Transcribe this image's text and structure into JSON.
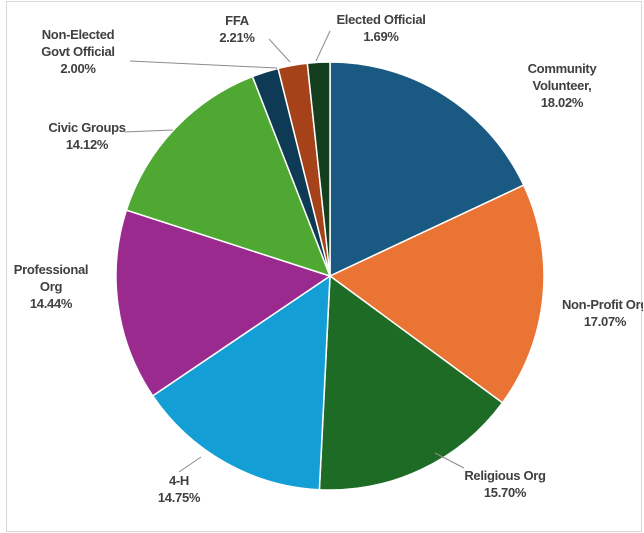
{
  "chart_data": {
    "type": "pie",
    "slices": [
      {
        "label_lines": [
          "Community",
          "Volunteer,"
        ],
        "value": 18.02,
        "value_text": "18.02%",
        "color": "#1a5a82"
      },
      {
        "label_lines": [
          "Non-Profit Org"
        ],
        "value": 17.07,
        "value_text": "17.07%",
        "color": "#ea7433"
      },
      {
        "label_lines": [
          "Religious Org"
        ],
        "value": 15.7,
        "value_text": "15.70%",
        "color": "#1e6b26"
      },
      {
        "label_lines": [
          "4-H"
        ],
        "value": 14.75,
        "value_text": "14.75%",
        "color": "#149ed6"
      },
      {
        "label_lines": [
          "Professional",
          "Org"
        ],
        "value": 14.44,
        "value_text": "14.44%",
        "color": "#9b2a8e"
      },
      {
        "label_lines": [
          "Civic Groups"
        ],
        "value": 14.12,
        "value_text": "14.12%",
        "color": "#4ea832"
      },
      {
        "label_lines": [
          "Non-Elected",
          "Govt Official"
        ],
        "value": 2.0,
        "value_text": "2.00%",
        "color": "#0f3a55"
      },
      {
        "label_lines": [
          "FFA"
        ],
        "value": 2.21,
        "value_text": "2.21%",
        "color": "#a6421a"
      },
      {
        "label_lines": [
          "Elected Official"
        ],
        "value": 1.69,
        "value_text": "1.69%",
        "color": "#143f1e"
      }
    ]
  }
}
